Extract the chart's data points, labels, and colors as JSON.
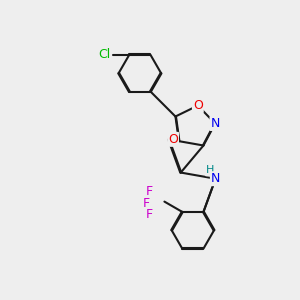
{
  "bg_color": "#eeeeee",
  "bond_color": "#1a1a1a",
  "atom_colors": {
    "Cl": "#00bb00",
    "O": "#ee0000",
    "N": "#0000ee",
    "H": "#008888",
    "F": "#cc00cc"
  },
  "line_width": 1.5,
  "dbo": 0.018
}
